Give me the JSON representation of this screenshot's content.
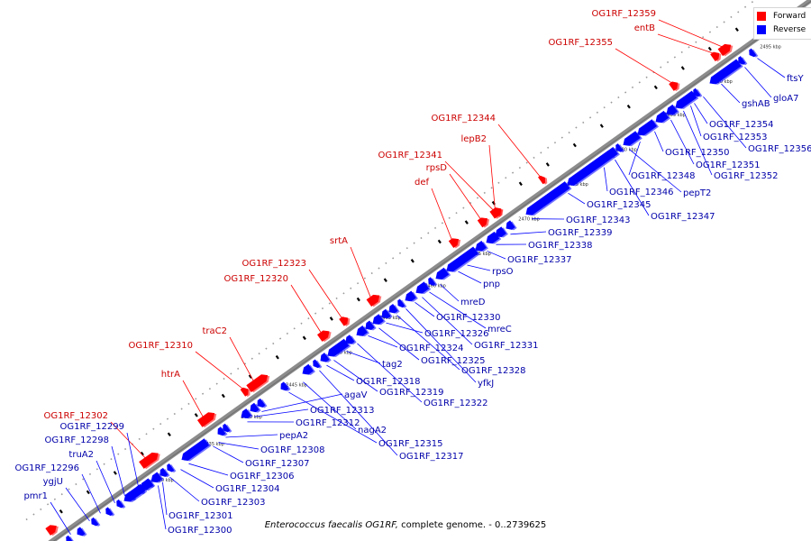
{
  "legend": {
    "forward": {
      "label": "Forward",
      "color": "#ff0000"
    },
    "reverse": {
      "label": "Reverse",
      "color": "#0000ff"
    }
  },
  "caption": {
    "organism": "Enterococcus faecalis OG1RF,",
    "rest": " complete genome. - 0..2739625"
  },
  "ticks": [
    "2430 kbp",
    "2435 kbp",
    "2440 kbp",
    "2445 kbp",
    "2450 kbp",
    "2455 kbp",
    "2460 kbp",
    "2465 kbp",
    "2470 kbp",
    "2475 kbp",
    "2480 kbp",
    "2485 kbp",
    "2490 kbp",
    "2495 kbp"
  ],
  "forward_genes": [
    "OG1RF_12302",
    "htrA",
    "OG1RF_12310",
    "traC2",
    "OG1RF_12320",
    "OG1RF_12323",
    "srtA",
    "def",
    "rpsD",
    "OG1RF_12341",
    "lepB2",
    "OG1RF_12344",
    "OG1RF_12355",
    "entB",
    "OG1RF_12359"
  ],
  "reverse_upper": [
    "pmr1",
    "ygjU",
    "OG1RF_12296",
    "truA2",
    "OG1RF_12298",
    "OG1RF_12299"
  ],
  "reverse_lower": [
    "OG1RF_12300",
    "OG1RF_12301",
    "OG1RF_12303",
    "OG1RF_12304",
    "OG1RF_12306",
    "OG1RF_12307",
    "OG1RF_12308",
    "pepA2",
    "OG1RF_12312",
    "OG1RF_12313",
    "agaV",
    "nagA2",
    "OG1RF_12315",
    "OG1RF_12317",
    "OG1RF_12318",
    "OG1RF_12319",
    "tag2",
    "OG1RF_12322",
    "OG1RF_12324",
    "OG1RF_12325",
    "OG1RF_12326",
    "OG1RF_12328",
    "yfkJ",
    "OG1RF_12330",
    "OG1RF_12331",
    "mreC",
    "mreD",
    "pnp",
    "rpsO",
    "OG1RF_12337",
    "OG1RF_12338",
    "OG1RF_12339",
    "OG1RF_12343",
    "OG1RF_12345",
    "OG1RF_12346",
    "OG1RF_12347",
    "pepT2",
    "OG1RF_12348",
    "OG1RF_12350",
    "OG1RF_12351",
    "OG1RF_12352",
    "OG1RF_12353",
    "OG1RF_12354",
    "OG1RF_12356",
    "gshAB",
    "gloA7",
    "ftsY"
  ]
}
